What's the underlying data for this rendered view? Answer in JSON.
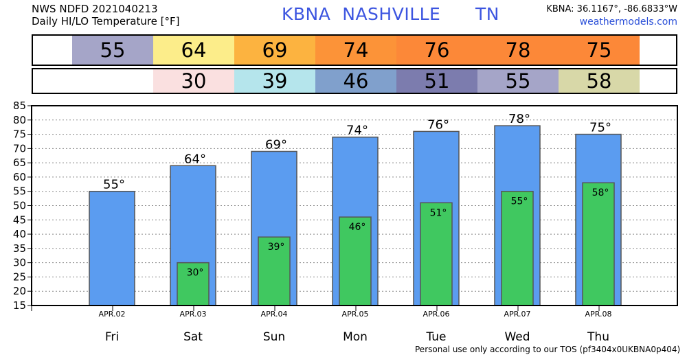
{
  "header": {
    "line1": "NWS NDFD 2021040213",
    "line2": "Daily HI/LO Temperature [°F]",
    "station_title": "KBNA  NASHVILLE      TN",
    "coords": "KBNA: 36.1167°, -86.6833°W",
    "site": "weathermodels.com"
  },
  "high_strip": [
    {
      "value": "55",
      "color": "#a5a5c8"
    },
    {
      "value": "64",
      "color": "#fced8a"
    },
    {
      "value": "69",
      "color": "#fcb340"
    },
    {
      "value": "74",
      "color": "#fc9338"
    },
    {
      "value": "76",
      "color": "#fc8838"
    },
    {
      "value": "78",
      "color": "#fc8838"
    },
    {
      "value": "75",
      "color": "#fc8838"
    }
  ],
  "low_strip": [
    {
      "value": "30",
      "color": "#fae0e0"
    },
    {
      "value": "39",
      "color": "#b5e5ec"
    },
    {
      "value": "46",
      "color": "#80a0cc"
    },
    {
      "value": "51",
      "color": "#7c7cae"
    },
    {
      "value": "55",
      "color": "#a5a5c8"
    },
    {
      "value": "58",
      "color": "#d8d8a8"
    }
  ],
  "footer": "Personal use only according to our TOS (pf3404x0UKBNA0p404)",
  "chart_data": {
    "type": "bar",
    "categories": [
      "Fri",
      "Sat",
      "Sun",
      "Mon",
      "Tue",
      "Wed",
      "Thu"
    ],
    "dates": [
      "APR.02",
      "APR.03",
      "APR.04",
      "APR.05",
      "APR.06",
      "APR.07",
      "APR.08"
    ],
    "ylim": [
      15,
      85
    ],
    "yticks": [
      15,
      20,
      25,
      30,
      35,
      40,
      45,
      50,
      55,
      60,
      65,
      70,
      75,
      80,
      85
    ],
    "grid": true,
    "series": [
      {
        "values": [
          55,
          64,
          69,
          74,
          76,
          78,
          75
        ],
        "labels": [
          "55°",
          "64°",
          "69°",
          "74°",
          "76°",
          "78°",
          "75°"
        ],
        "color": "#5b9cf0"
      },
      {
        "values": [
          null,
          30,
          39,
          46,
          51,
          55,
          58
        ],
        "labels": [
          "",
          "30°",
          "39°",
          "46°",
          "51°",
          "55°",
          "58°"
        ],
        "color": "#40c860"
      }
    ]
  }
}
